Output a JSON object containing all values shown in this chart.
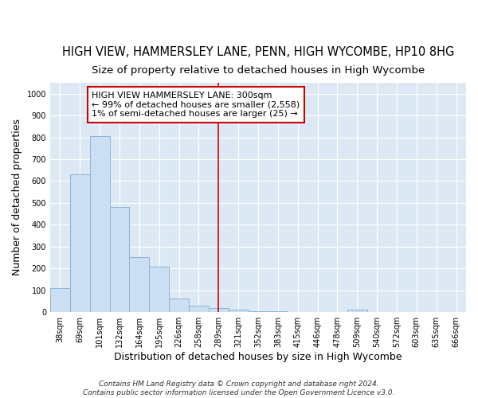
{
  "title": "HIGH VIEW, HAMMERSLEY LANE, PENN, HIGH WYCOMBE, HP10 8HG",
  "subtitle": "Size of property relative to detached houses in High Wycombe",
  "xlabel": "Distribution of detached houses by size in High Wycombe",
  "ylabel": "Number of detached properties",
  "footnote": "Contains HM Land Registry data © Crown copyright and database right 2024.\nContains public sector information licensed under the Open Government Licence v3.0.",
  "bar_labels": [
    "38sqm",
    "69sqm",
    "101sqm",
    "132sqm",
    "164sqm",
    "195sqm",
    "226sqm",
    "258sqm",
    "289sqm",
    "321sqm",
    "352sqm",
    "383sqm",
    "415sqm",
    "446sqm",
    "478sqm",
    "509sqm",
    "540sqm",
    "572sqm",
    "603sqm",
    "635sqm",
    "666sqm"
  ],
  "bar_values": [
    110,
    630,
    805,
    480,
    250,
    207,
    62,
    28,
    18,
    13,
    5,
    3,
    2,
    0,
    0,
    10,
    0,
    0,
    0,
    0,
    0
  ],
  "bar_color": "#ccdff2",
  "bar_edge_color": "#8ab4d8",
  "vline_x": 8,
  "vline_color": "#cc0000",
  "annotation_text": "HIGH VIEW HAMMERSLEY LANE: 300sqm\n← 99% of detached houses are smaller (2,558)\n1% of semi-detached houses are larger (25) →",
  "annotation_box_color": "#ffffff",
  "annotation_box_edge": "#cc0000",
  "ylim": [
    0,
    1050
  ],
  "yticks": [
    0,
    100,
    200,
    300,
    400,
    500,
    600,
    700,
    800,
    900,
    1000
  ],
  "bg_color": "#dce9f5",
  "fig_bg_color": "#ffffff",
  "grid_color": "#ffffff",
  "title_fontsize": 10.5,
  "subtitle_fontsize": 9.5,
  "label_fontsize": 9,
  "tick_fontsize": 7,
  "annotation_fontsize": 8,
  "footnote_fontsize": 6.5
}
